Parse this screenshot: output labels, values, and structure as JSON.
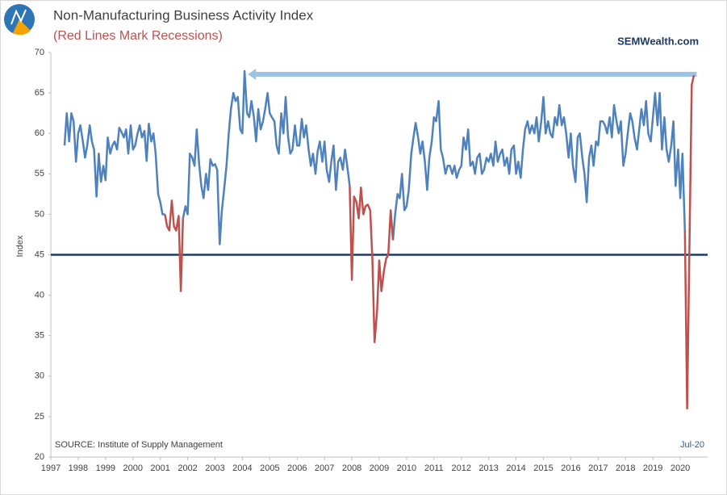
{
  "chart_data": {
    "type": "line",
    "title": "Non-Manufacturing Business Activity Index",
    "subtitle": "(Red Lines Mark Recessions)",
    "brand": "SEMWealth.com",
    "y_label": "Index",
    "source": "SOURCE:  Institute of Supply Management",
    "date_label": "Jul-20",
    "xlim": [
      1997,
      2021
    ],
    "xticks": [
      1997,
      1998,
      1999,
      2000,
      2001,
      2002,
      2003,
      2004,
      2005,
      2006,
      2007,
      2008,
      2009,
      2010,
      2011,
      2012,
      2013,
      2014,
      2015,
      2016,
      2017,
      2018,
      2019,
      2020
    ],
    "ylim": [
      20,
      70
    ],
    "yticks": [
      20,
      25,
      30,
      35,
      40,
      45,
      50,
      55,
      60,
      65,
      70
    ],
    "grid": false,
    "hline": {
      "value": 45,
      "color": "#1f3864"
    },
    "arrow": {
      "y": 67.3,
      "x": [
        2004.2,
        2020.6
      ],
      "color": "#9dc3e6"
    },
    "series": [
      {
        "color": "#4f81bd",
        "x": [
          1997.5,
          1997.58,
          1997.67,
          1997.75,
          1997.83,
          1997.92,
          1998,
          1998.08,
          1998.17,
          1998.25,
          1998.33,
          1998.42,
          1998.5,
          1998.58,
          1998.67,
          1998.75,
          1998.83,
          1998.92,
          1999,
          1999.08,
          1999.17,
          1999.25,
          1999.33,
          1999.42,
          1999.5,
          1999.58,
          1999.67,
          1999.75,
          1999.83,
          1999.92,
          2000,
          2000.08,
          2000.17,
          2000.25,
          2000.33,
          2000.42,
          2000.5,
          2000.58,
          2000.67,
          2000.75,
          2000.83,
          2000.92,
          2001,
          2001.08,
          2001.17,
          2001.5,
          2001.83,
          2001.92,
          2002,
          2002.08,
          2002.17,
          2002.25,
          2002.33,
          2002.42,
          2002.5,
          2002.58,
          2002.67,
          2002.75,
          2002.83,
          2002.92,
          2003,
          2003.08,
          2003.17,
          2003.25,
          2003.33,
          2003.42,
          2003.5,
          2003.58,
          2003.67,
          2003.75,
          2003.83,
          2003.92,
          2004,
          2004.08,
          2004.17,
          2004.25,
          2004.33,
          2004.42,
          2004.5,
          2004.58,
          2004.67,
          2004.75,
          2004.83,
          2004.92,
          2005,
          2005.08,
          2005.17,
          2005.25,
          2005.33,
          2005.42,
          2005.5,
          2005.58,
          2005.67,
          2005.75,
          2005.83,
          2005.92,
          2006,
          2006.08,
          2006.17,
          2006.25,
          2006.33,
          2006.42,
          2006.5,
          2006.58,
          2006.67,
          2006.75,
          2006.83,
          2006.92,
          2007,
          2007.08,
          2007.17,
          2007.25,
          2007.33,
          2007.42,
          2007.5,
          2007.58,
          2007.67,
          2007.75,
          2007.83,
          2007.92,
          2008.7,
          2009.5,
          2009.58,
          2009.67,
          2009.75,
          2009.83,
          2009.92,
          2010,
          2010.08,
          2010.17,
          2010.25,
          2010.33,
          2010.42,
          2010.5,
          2010.58,
          2010.67,
          2010.75,
          2010.83,
          2010.92,
          2011,
          2011.08,
          2011.17,
          2011.25,
          2011.33,
          2011.42,
          2011.5,
          2011.58,
          2011.67,
          2011.75,
          2011.83,
          2011.92,
          2012,
          2012.08,
          2012.17,
          2012.25,
          2012.33,
          2012.42,
          2012.5,
          2012.58,
          2012.67,
          2012.75,
          2012.83,
          2012.92,
          2013,
          2013.08,
          2013.17,
          2013.25,
          2013.33,
          2013.42,
          2013.5,
          2013.58,
          2013.67,
          2013.75,
          2013.83,
          2013.92,
          2014,
          2014.08,
          2014.17,
          2014.25,
          2014.33,
          2014.42,
          2014.5,
          2014.58,
          2014.67,
          2014.75,
          2014.83,
          2014.92,
          2015,
          2015.08,
          2015.17,
          2015.25,
          2015.33,
          2015.42,
          2015.5,
          2015.58,
          2015.67,
          2015.75,
          2015.83,
          2015.92,
          2016,
          2016.08,
          2016.17,
          2016.25,
          2016.33,
          2016.42,
          2016.5,
          2016.58,
          2016.67,
          2016.75,
          2016.83,
          2016.92,
          2017,
          2017.08,
          2017.17,
          2017.25,
          2017.33,
          2017.42,
          2017.5,
          2017.58,
          2017.67,
          2017.75,
          2017.83,
          2017.92,
          2018,
          2018.08,
          2018.17,
          2018.25,
          2018.33,
          2018.42,
          2018.5,
          2018.58,
          2018.67,
          2018.75,
          2018.83,
          2018.92,
          2019,
          2019.08,
          2019.17,
          2019.25,
          2019.33,
          2019.42,
          2019.5,
          2019.58,
          2019.67,
          2019.75,
          2019.83,
          2019.92,
          2020,
          2020.08,
          2020.17
        ],
        "values": [
          58.5,
          62.5,
          59,
          62.5,
          61.5,
          56.5,
          60,
          61,
          59,
          57,
          58.5,
          61,
          59,
          58,
          52.2,
          57.5,
          54,
          56,
          54.2,
          59.5,
          57.5,
          58.5,
          59,
          58,
          60.7,
          60.2,
          59.5,
          60.5,
          57.5,
          61,
          58,
          58.5,
          60,
          61,
          59.5,
          60.3,
          56.6,
          61.2,
          59,
          60,
          57.5,
          52.5,
          51.5,
          50,
          50,
          null,
          49.5,
          51,
          50,
          57.5,
          57,
          56,
          60.5,
          56.2,
          53.5,
          52,
          55,
          53,
          56.8,
          56,
          56.2,
          55.5,
          46.3,
          50.5,
          53,
          56,
          60,
          63,
          65,
          64,
          64.5,
          60.5,
          60,
          67.7,
          62.5,
          62,
          64,
          62,
          59,
          63,
          60.5,
          61.5,
          63,
          65,
          62.5,
          62,
          61.5,
          58.5,
          57.5,
          62.5,
          60,
          64.5,
          59.5,
          57.5,
          58,
          61,
          58.5,
          58.5,
          61.8,
          59.5,
          61,
          58,
          56,
          57.5,
          55,
          57.8,
          59,
          56.5,
          59,
          55.5,
          54,
          56.5,
          58.5,
          53,
          56.5,
          57,
          55.5,
          58,
          56,
          53.5,
          null,
          46.8,
          50,
          52.5,
          52,
          55,
          50.5,
          51,
          53,
          57.5,
          59.5,
          61.3,
          59.5,
          57.5,
          59,
          56.5,
          53,
          57,
          59,
          62,
          61.5,
          64,
          58,
          57,
          55,
          56,
          56,
          55,
          56,
          54.5,
          55.5,
          56,
          59.5,
          58,
          60.5,
          56,
          56.5,
          55,
          57,
          57.5,
          55,
          55.5,
          57,
          56.5,
          57.5,
          56,
          59,
          56.5,
          57.5,
          58,
          56,
          57,
          55,
          58,
          58.5,
          55,
          56.5,
          54.5,
          58,
          60.5,
          61.5,
          60,
          61,
          60,
          62,
          59,
          61.5,
          64.5,
          60,
          61.5,
          60,
          59.5,
          62,
          61,
          63.5,
          61,
          62,
          60,
          57,
          60,
          56,
          54,
          59.5,
          60,
          57,
          55,
          51.5,
          57,
          58.5,
          56,
          59,
          58.5,
          61.5,
          61.5,
          61,
          60,
          62,
          59.5,
          63.5,
          61.5,
          60,
          61.5,
          56,
          57.5,
          60,
          62.5,
          61.5,
          59.5,
          58,
          60.5,
          63,
          61,
          64,
          60,
          59,
          62,
          65,
          61,
          65,
          58,
          62,
          58,
          56.5,
          58.5,
          61.5,
          53.5,
          58,
          52,
          57.5,
          48
        ]
      },
      {
        "color": "#c0504d",
        "x": [
          2001.17,
          2001.25,
          2001.33,
          2001.42,
          2001.5,
          2001.58,
          2001.67,
          2001.75,
          2001.83,
          2005,
          2007.92,
          2008,
          2008.08,
          2008.17,
          2008.25,
          2008.33,
          2008.42,
          2008.5,
          2008.58,
          2008.67,
          2008.75,
          2008.83,
          2008.92,
          2009,
          2009.08,
          2009.17,
          2009.25,
          2009.33,
          2009.42,
          2009.5,
          2015,
          2020.17,
          2020.25,
          2020.42,
          2020.5
        ],
        "values": [
          50,
          48.5,
          48,
          51.7,
          48.5,
          48,
          49.8,
          40.5,
          49.5,
          null,
          53.5,
          41.9,
          52.2,
          51.5,
          49.5,
          53.3,
          50,
          51,
          51.2,
          50.5,
          44.5,
          34.2,
          38,
          44.3,
          40.5,
          43,
          44.5,
          45,
          50.5,
          46.8,
          null,
          48,
          26,
          66,
          67.2
        ]
      }
    ]
  }
}
